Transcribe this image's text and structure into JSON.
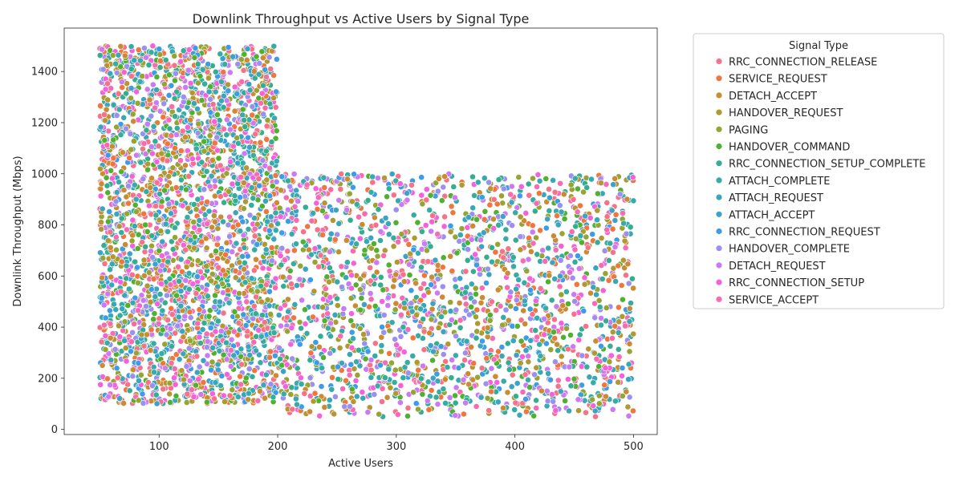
{
  "chart_data": {
    "type": "scatter",
    "title": "Downlink Throughput vs Active Users by Signal Type",
    "xlabel": "Active Users",
    "ylabel": "Downlink Throughput (Mbps)",
    "xlim": [
      20,
      520
    ],
    "ylim": [
      -20,
      1570
    ],
    "xticks": [
      100,
      200,
      300,
      400,
      500
    ],
    "yticks": [
      0,
      200,
      400,
      600,
      800,
      1000,
      1200,
      1400
    ],
    "grid": false,
    "legend": {
      "title": "Signal Type",
      "placement": "outside-right",
      "entries": [
        {
          "name": "RRC_CONNECTION_RELEASE",
          "color": "#f77189"
        },
        {
          "name": "SERVICE_REQUEST",
          "color": "#f0763d"
        },
        {
          "name": "DETACH_ACCEPT",
          "color": "#cc8a32"
        },
        {
          "name": "HANDOVER_REQUEST",
          "color": "#b29831"
        },
        {
          "name": "PAGING",
          "color": "#97a431"
        },
        {
          "name": "HANDOVER_COMMAND",
          "color": "#50b131"
        },
        {
          "name": "RRC_CONNECTION_SETUP_COMPLETE",
          "color": "#34ae91"
        },
        {
          "name": "ATTACH_COMPLETE",
          "color": "#36ada4"
        },
        {
          "name": "ATTACH_REQUEST",
          "color": "#38a9b4"
        },
        {
          "name": "ATTACH_ACCEPT",
          "color": "#3ba3c3"
        },
        {
          "name": "RRC_CONNECTION_REQUEST",
          "color": "#3c9ce6"
        },
        {
          "name": "HANDOVER_COMPLETE",
          "color": "#9b8fef"
        },
        {
          "name": "DETACH_REQUEST",
          "color": "#cc7af4"
        },
        {
          "name": "RRC_CONNECTION_SETUP",
          "color": "#f561dd"
        },
        {
          "name": "SERVICE_ACCEPT",
          "color": "#f66bb1"
        }
      ]
    },
    "regions": [
      {
        "x": [
          50,
          200
        ],
        "y": [
          100,
          1500
        ],
        "approx_points": 3000
      },
      {
        "x": [
          200,
          500
        ],
        "y": [
          50,
          1000
        ],
        "approx_points": 2000
      }
    ],
    "marker": {
      "shape": "circle",
      "edge_color": "#ffffff"
    }
  }
}
